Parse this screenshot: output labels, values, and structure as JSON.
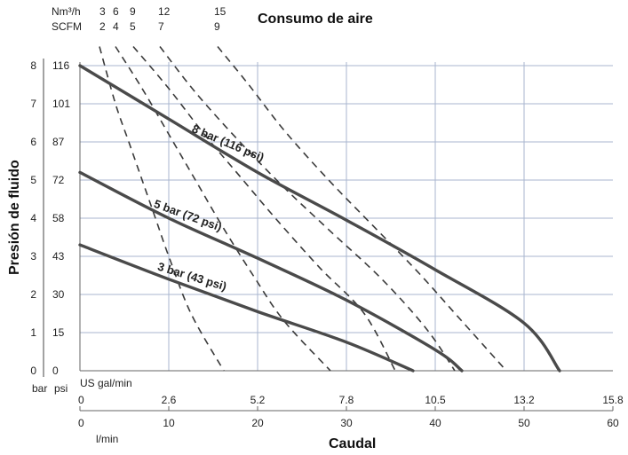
{
  "chart_data": {
    "type": "line",
    "title": "Consumo de aire",
    "xlabel": "Caudal",
    "ylabel": "Presión de fluido",
    "x_unit": "l/min",
    "x_secondary_unit": "US gal/min",
    "y_units": [
      "bar",
      "psi"
    ],
    "air_units": [
      "Nm³/h",
      "SCFM"
    ],
    "xlim": [
      0,
      60
    ],
    "ylim": [
      0,
      8
    ],
    "grid": true,
    "x_ticks_lmin": [
      "0",
      "10",
      "20",
      "30",
      "40",
      "50",
      "60"
    ],
    "x_ticks_gal": [
      "0",
      "2.6",
      "5.2",
      "7.8",
      "10.5",
      "13.2",
      "15.8"
    ],
    "y_ticks_bar": [
      "0",
      "1",
      "2",
      "3",
      "4",
      "5",
      "6",
      "7",
      "8"
    ],
    "y_ticks_psi": [
      "0",
      "15",
      "30",
      "43",
      "58",
      "72",
      "87",
      "101",
      "116"
    ],
    "air_ticks_nm3h": [
      "3",
      "6",
      "9",
      "12",
      "15"
    ],
    "air_ticks_scfm": [
      "2",
      "4",
      "5",
      "7",
      "9"
    ],
    "series": [
      {
        "name": "8 bar (116 psi)",
        "x": [
          0,
          10,
          20,
          30,
          40,
          50,
          54
        ],
        "y": [
          8.0,
          6.6,
          5.2,
          3.95,
          2.65,
          1.25,
          0.0
        ]
      },
      {
        "name": "5 bar (72 psi)",
        "x": [
          0,
          10,
          20,
          30,
          40,
          43
        ],
        "y": [
          5.2,
          4.0,
          2.95,
          1.85,
          0.55,
          0.0
        ]
      },
      {
        "name": "3 bar (43 psi)",
        "x": [
          0,
          10,
          20,
          30,
          37.5
        ],
        "y": [
          3.3,
          2.4,
          1.55,
          0.75,
          0.0
        ]
      }
    ],
    "air_consumption_curves": [
      {
        "value_nm3h": "3",
        "x": [
          2.2,
          4,
          5.5,
          7,
          8.5,
          10,
          12.5,
          16.2
        ],
        "y": [
          8.5,
          7.0,
          6.0,
          5.0,
          4.0,
          3.0,
          1.5,
          0.0
        ]
      },
      {
        "value_nm3h": "6",
        "x": [
          4.0,
          7,
          10,
          13,
          16,
          19.5,
          23,
          28.2
        ],
        "y": [
          8.5,
          7.4,
          6.2,
          5.0,
          3.8,
          2.5,
          1.3,
          0.0
        ]
      },
      {
        "value_nm3h": "9",
        "x": [
          6.0,
          10,
          14,
          18,
          22,
          27,
          32,
          35.5
        ],
        "y": [
          8.5,
          7.4,
          6.2,
          5.1,
          4.0,
          2.7,
          1.5,
          0.0
        ]
      },
      {
        "value_nm3h": "12",
        "x": [
          9.0,
          13,
          18,
          23,
          28,
          34,
          39,
          42.2
        ],
        "y": [
          8.5,
          7.3,
          6.0,
          4.8,
          3.7,
          2.4,
          1.1,
          0.0
        ]
      },
      {
        "value_nm3h": "15",
        "x": [
          15.5,
          19,
          23,
          28,
          33,
          38,
          43,
          48.0
        ],
        "y": [
          8.5,
          7.5,
          6.3,
          5.0,
          3.8,
          2.6,
          1.3,
          0.0
        ]
      }
    ]
  }
}
